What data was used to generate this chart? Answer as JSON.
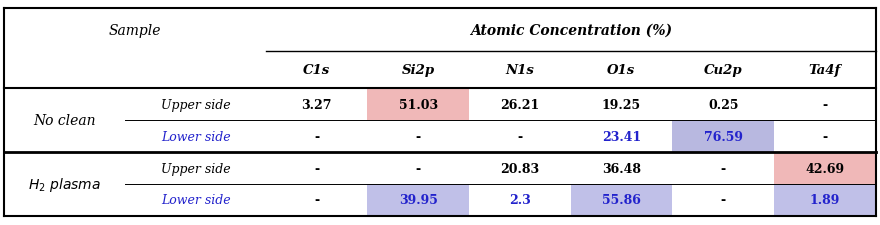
{
  "title_col1": "Sample",
  "title_group": "Atomic Concentration (%)",
  "col_headers": [
    "C1s",
    "Si2p",
    "N1s",
    "O1s",
    "Cu2p",
    "Ta4f"
  ],
  "row_groups": [
    {
      "label": "No clean",
      "rows": [
        {
          "name": "Upper side",
          "name_color": "#000000",
          "values": [
            "3.27",
            "51.03",
            "26.21",
            "19.25",
            "0.25",
            "-"
          ],
          "cell_colors": [
            "#ffffff",
            "#f0b8b8",
            "#ffffff",
            "#ffffff",
            "#ffffff",
            "#ffffff"
          ],
          "value_colors": [
            "#000000",
            "#000000",
            "#000000",
            "#000000",
            "#000000",
            "#000000"
          ]
        },
        {
          "name": "Lower side",
          "name_color": "#2222cc",
          "values": [
            "-",
            "-",
            "-",
            "23.41",
            "76.59",
            "-"
          ],
          "cell_colors": [
            "#ffffff",
            "#ffffff",
            "#ffffff",
            "#ffffff",
            "#b8b8e0",
            "#ffffff"
          ],
          "value_colors": [
            "#000000",
            "#000000",
            "#000000",
            "#2222cc",
            "#2222cc",
            "#000000"
          ]
        }
      ]
    },
    {
      "label": "H₂ plasma",
      "rows": [
        {
          "name": "Upper side",
          "name_color": "#000000",
          "values": [
            "-",
            "-",
            "20.83",
            "36.48",
            "-",
            "42.69"
          ],
          "cell_colors": [
            "#ffffff",
            "#ffffff",
            "#ffffff",
            "#ffffff",
            "#ffffff",
            "#f0b8b8"
          ],
          "value_colors": [
            "#000000",
            "#000000",
            "#000000",
            "#000000",
            "#000000",
            "#000000"
          ]
        },
        {
          "name": "Lower side",
          "name_color": "#2222cc",
          "values": [
            "-",
            "39.95",
            "2.3",
            "55.86",
            "-",
            "1.89"
          ],
          "cell_colors": [
            "#ffffff",
            "#c0c0e8",
            "#ffffff",
            "#c0c0e8",
            "#ffffff",
            "#c0c0e8"
          ],
          "value_colors": [
            "#000000",
            "#2222cc",
            "#2222cc",
            "#2222cc",
            "#000000",
            "#2222cc"
          ]
        }
      ]
    }
  ],
  "figsize": [
    8.8,
    2.26
  ],
  "dpi": 100
}
